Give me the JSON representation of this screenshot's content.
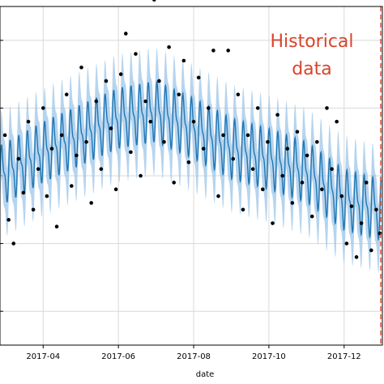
{
  "chart_data": {
    "type": "line",
    "xlabel": "date",
    "ylabel": "",
    "title": "",
    "grid": true,
    "x_ticks": [
      "2017-04",
      "2017-06",
      "2017-08",
      "2017-10",
      "2017-12"
    ],
    "x_range": [
      "2017-02-25",
      "2018-01-01"
    ],
    "y_range": [
      0,
      1
    ],
    "series": [
      {
        "kind": "forecast",
        "color": "#1f77b4",
        "band_color": "#9ec5e8",
        "weekly_period_days": 7,
        "trend": [
          {
            "x": "2017-02-25",
            "y": 0.5
          },
          {
            "x": "2017-04-01",
            "y": 0.57
          },
          {
            "x": "2017-05-01",
            "y": 0.62
          },
          {
            "x": "2017-06-01",
            "y": 0.67
          },
          {
            "x": "2017-07-01",
            "y": 0.69
          },
          {
            "x": "2017-08-01",
            "y": 0.64
          },
          {
            "x": "2017-09-01",
            "y": 0.58
          },
          {
            "x": "2017-10-01",
            "y": 0.55
          },
          {
            "x": "2017-11-01",
            "y": 0.51
          },
          {
            "x": "2017-12-01",
            "y": 0.43
          },
          {
            "x": "2017-12-31",
            "y": 0.4
          }
        ],
        "seasonal_amplitude": 0.1,
        "band_halfwidth": 0.1
      },
      {
        "kind": "observations",
        "color": "#000000",
        "points": [
          {
            "x": "2017-03-01",
            "y": 0.62
          },
          {
            "x": "2017-03-04",
            "y": 0.37
          },
          {
            "x": "2017-03-08",
            "y": 0.3
          },
          {
            "x": "2017-03-12",
            "y": 0.55
          },
          {
            "x": "2017-03-16",
            "y": 0.45
          },
          {
            "x": "2017-03-20",
            "y": 0.66
          },
          {
            "x": "2017-03-24",
            "y": 0.4
          },
          {
            "x": "2017-03-28",
            "y": 0.52
          },
          {
            "x": "2017-04-01",
            "y": 0.7
          },
          {
            "x": "2017-04-04",
            "y": 0.44
          },
          {
            "x": "2017-04-08",
            "y": 0.58
          },
          {
            "x": "2017-04-12",
            "y": 0.35
          },
          {
            "x": "2017-04-16",
            "y": 0.62
          },
          {
            "x": "2017-04-20",
            "y": 0.74
          },
          {
            "x": "2017-04-24",
            "y": 0.47
          },
          {
            "x": "2017-04-28",
            "y": 0.56
          },
          {
            "x": "2017-05-02",
            "y": 0.82
          },
          {
            "x": "2017-05-06",
            "y": 0.6
          },
          {
            "x": "2017-05-10",
            "y": 0.42
          },
          {
            "x": "2017-05-14",
            "y": 0.72
          },
          {
            "x": "2017-05-18",
            "y": 0.52
          },
          {
            "x": "2017-05-22",
            "y": 0.78
          },
          {
            "x": "2017-05-26",
            "y": 0.64
          },
          {
            "x": "2017-05-30",
            "y": 0.46
          },
          {
            "x": "2017-06-03",
            "y": 0.8
          },
          {
            "x": "2017-06-07",
            "y": 0.92
          },
          {
            "x": "2017-06-11",
            "y": 0.57
          },
          {
            "x": "2017-06-15",
            "y": 0.86
          },
          {
            "x": "2017-06-19",
            "y": 0.5
          },
          {
            "x": "2017-06-23",
            "y": 0.72
          },
          {
            "x": "2017-06-27",
            "y": 0.66
          },
          {
            "x": "2017-06-30",
            "y": 1.02
          },
          {
            "x": "2017-07-04",
            "y": 0.78
          },
          {
            "x": "2017-07-08",
            "y": 0.6
          },
          {
            "x": "2017-07-12",
            "y": 0.88
          },
          {
            "x": "2017-07-16",
            "y": 0.48
          },
          {
            "x": "2017-07-20",
            "y": 0.74
          },
          {
            "x": "2017-07-24",
            "y": 0.84
          },
          {
            "x": "2017-07-28",
            "y": 0.54
          },
          {
            "x": "2017-08-01",
            "y": 0.66
          },
          {
            "x": "2017-08-05",
            "y": 0.79
          },
          {
            "x": "2017-08-09",
            "y": 0.58
          },
          {
            "x": "2017-08-13",
            "y": 0.7
          },
          {
            "x": "2017-08-17",
            "y": 0.87
          },
          {
            "x": "2017-08-21",
            "y": 0.44
          },
          {
            "x": "2017-08-25",
            "y": 0.62
          },
          {
            "x": "2017-08-29",
            "y": 0.87
          },
          {
            "x": "2017-09-02",
            "y": 0.55
          },
          {
            "x": "2017-09-06",
            "y": 0.74
          },
          {
            "x": "2017-09-10",
            "y": 0.4
          },
          {
            "x": "2017-09-14",
            "y": 0.62
          },
          {
            "x": "2017-09-18",
            "y": 0.52
          },
          {
            "x": "2017-09-22",
            "y": 0.7
          },
          {
            "x": "2017-09-26",
            "y": 0.46
          },
          {
            "x": "2017-09-30",
            "y": 0.6
          },
          {
            "x": "2017-10-04",
            "y": 0.36
          },
          {
            "x": "2017-10-08",
            "y": 0.68
          },
          {
            "x": "2017-10-12",
            "y": 0.5
          },
          {
            "x": "2017-10-16",
            "y": 0.58
          },
          {
            "x": "2017-10-20",
            "y": 0.42
          },
          {
            "x": "2017-10-24",
            "y": 0.63
          },
          {
            "x": "2017-10-28",
            "y": 0.48
          },
          {
            "x": "2017-11-01",
            "y": 0.56
          },
          {
            "x": "2017-11-05",
            "y": 0.38
          },
          {
            "x": "2017-11-09",
            "y": 0.6
          },
          {
            "x": "2017-11-13",
            "y": 0.46
          },
          {
            "x": "2017-11-17",
            "y": 0.7
          },
          {
            "x": "2017-11-21",
            "y": 0.52
          },
          {
            "x": "2017-11-25",
            "y": 0.66
          },
          {
            "x": "2017-11-29",
            "y": 0.44
          },
          {
            "x": "2017-12-03",
            "y": 0.3
          },
          {
            "x": "2017-12-07",
            "y": 0.41
          },
          {
            "x": "2017-12-11",
            "y": 0.26
          },
          {
            "x": "2017-12-15",
            "y": 0.36
          },
          {
            "x": "2017-12-19",
            "y": 0.48
          },
          {
            "x": "2017-12-23",
            "y": 0.28
          },
          {
            "x": "2017-12-27",
            "y": 0.4
          },
          {
            "x": "2017-12-30",
            "y": 0.33
          }
        ]
      }
    ],
    "annotations": [
      {
        "text_lines": [
          "Historical",
          "data"
        ],
        "color": "#d9442b"
      }
    ],
    "vertical_line": {
      "x": "2017-12-31",
      "color": "#d9442b",
      "style": "dashed"
    }
  }
}
